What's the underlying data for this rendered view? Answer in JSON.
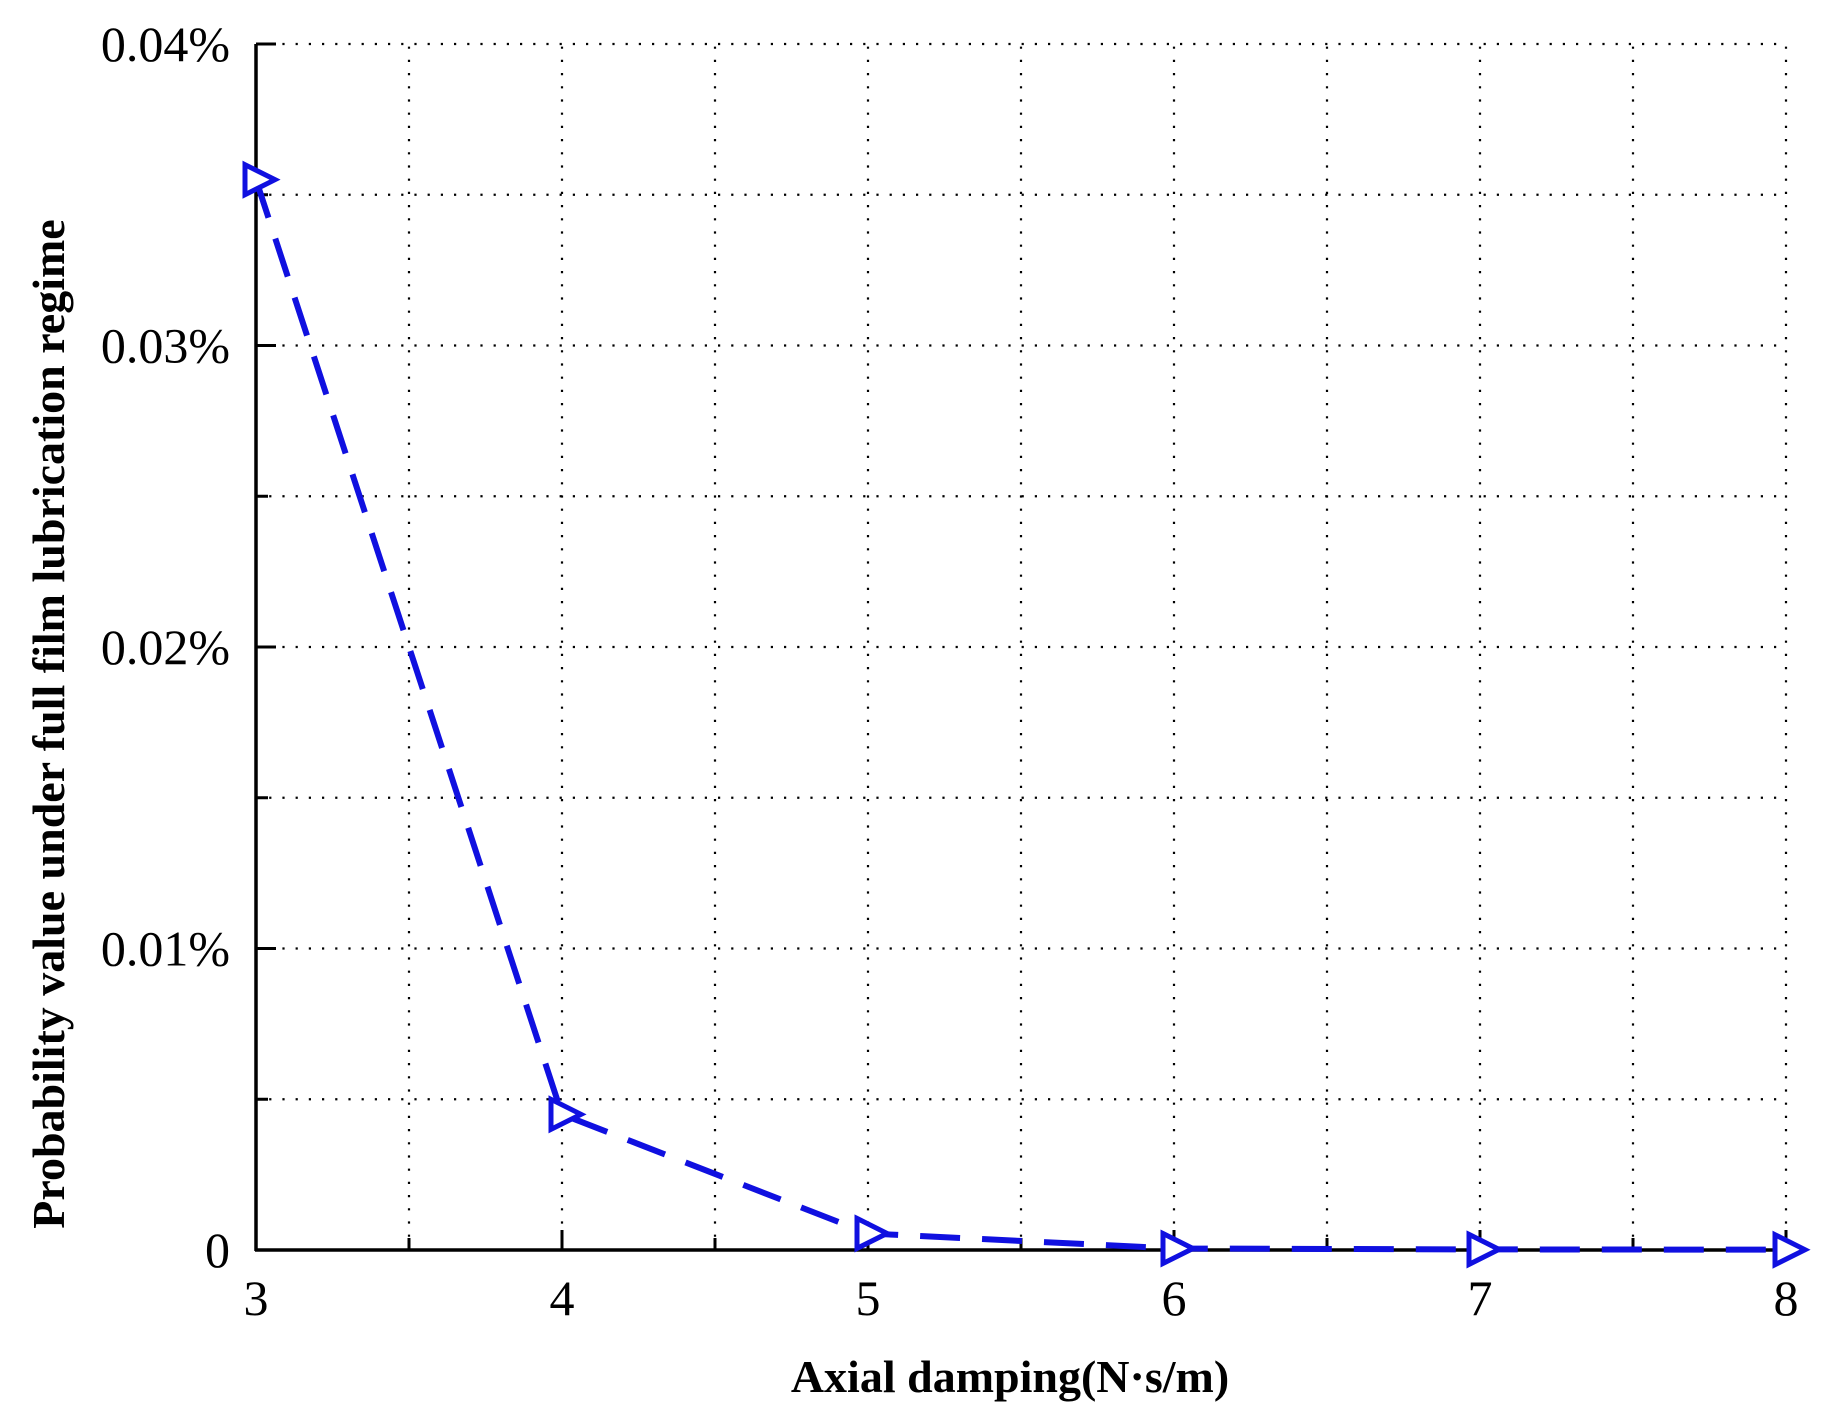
{
  "chart_data": {
    "type": "line",
    "title": "",
    "xlabel": "Axial damping(N·s/m)",
    "ylabel": "Probability value under full film lubrication regime",
    "xlim": [
      3,
      8
    ],
    "ylim": [
      0,
      0.04
    ],
    "x_ticks": [
      3,
      4,
      5,
      6,
      7,
      8
    ],
    "x_tick_labels": [
      "3",
      "4",
      "5",
      "6",
      "7",
      "8"
    ],
    "x_minor_ticks": [
      3.5,
      4.5,
      5.5,
      6.5,
      7.5
    ],
    "y_ticks": [
      0,
      0.01,
      0.02,
      0.03,
      0.04
    ],
    "y_tick_labels": [
      "0",
      "0.01%",
      "0.02%",
      "0.03%",
      "0.04%"
    ],
    "y_minor_ticks": [
      0.005,
      0.015,
      0.025,
      0.035
    ],
    "y_unit": "%",
    "grid": true,
    "grid_style": "dotted",
    "legend": "none",
    "series": [
      {
        "x": [
          3,
          4,
          5,
          6,
          7,
          8
        ],
        "values": [
          0.0355,
          0.0045,
          0.00055,
          5e-05,
          2e-05,
          1e-05
        ],
        "color": "#1010e0",
        "line_style": "dashed",
        "marker": "right-triangle-outline"
      }
    ]
  }
}
